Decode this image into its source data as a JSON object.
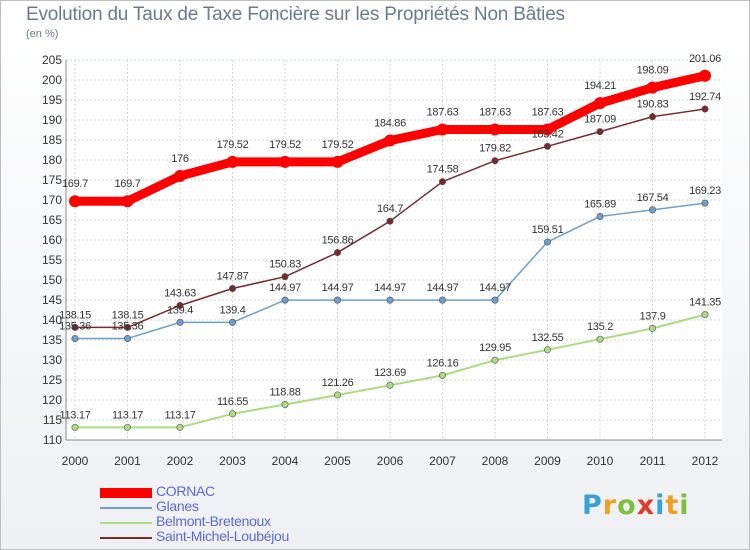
{
  "chart_data": {
    "type": "line",
    "title": "Evolution du Taux de Taxe Foncière sur les Propriétés Non Bâties",
    "subtitle": "(en %)",
    "x": [
      "2000",
      "2001",
      "2002",
      "2003",
      "2004",
      "2005",
      "2006",
      "2007",
      "2008",
      "2009",
      "2010",
      "2011",
      "2012"
    ],
    "ylim": [
      110,
      205
    ],
    "yticks": [
      110,
      115,
      120,
      125,
      130,
      135,
      140,
      145,
      150,
      155,
      160,
      165,
      170,
      175,
      180,
      185,
      190,
      195,
      200,
      205
    ],
    "grid": true,
    "legend_position": "bottom-left",
    "series": [
      {
        "name": "CORNAC",
        "color": "#ff0000",
        "values": [
          169.7,
          169.7,
          176,
          179.52,
          179.52,
          179.52,
          184.86,
          187.63,
          187.63,
          187.63,
          194.21,
          198.09,
          201.06
        ],
        "labels": [
          "169.7",
          "169.7",
          "176",
          "179.52",
          "179.52",
          "179.52",
          "184.86",
          "187.63",
          "187.63",
          "187.63",
          "194.21",
          "198.09",
          "201.06"
        ]
      },
      {
        "name": "Glanes",
        "color": "#6a9fd0",
        "values": [
          135.36,
          135.36,
          139.4,
          139.4,
          144.97,
          144.97,
          144.97,
          144.97,
          144.97,
          159.51,
          165.89,
          167.54,
          169.23
        ],
        "labels": [
          "135.36",
          "135.36",
          "139.4",
          "139.4",
          "144.97",
          "144.97",
          "144.97",
          "144.97",
          "144.97",
          "159.51",
          "165.89",
          "167.54",
          "169.23"
        ]
      },
      {
        "name": "Belmont-Bretenoux",
        "color": "#a8dd80",
        "values": [
          113.17,
          113.17,
          113.17,
          116.55,
          118.88,
          121.26,
          123.69,
          126.16,
          129.95,
          132.55,
          135.2,
          137.9,
          141.35
        ],
        "labels": [
          "113.17",
          "113.17",
          "113.17",
          "116.55",
          "118.88",
          "121.26",
          "123.69",
          "126.16",
          "129.95",
          "132.55",
          "135.2",
          "137.9",
          "141.35"
        ]
      },
      {
        "name": "Saint-Michel-Loubéjou",
        "color": "#7a2a2a",
        "values": [
          138.15,
          138.15,
          143.63,
          147.87,
          150.83,
          156.86,
          164.7,
          174.58,
          179.82,
          183.42,
          187.09,
          190.83,
          192.74
        ],
        "labels": [
          "138.15",
          "138.15",
          "143.63",
          "147.87",
          "150.83",
          "156.86",
          "164.7",
          "174.58",
          "179.82",
          "183.42",
          "187.09",
          "190.83",
          "192.74"
        ]
      }
    ]
  },
  "logo": {
    "letters": [
      "P",
      "r",
      "o",
      "x",
      "i",
      "t",
      "i"
    ],
    "colors": [
      "#3aa0d8",
      "#f0a020",
      "#7fbf3f",
      "#e03a2a",
      "#3aa0d8",
      "#f0a020",
      "#7fbf3f"
    ]
  }
}
